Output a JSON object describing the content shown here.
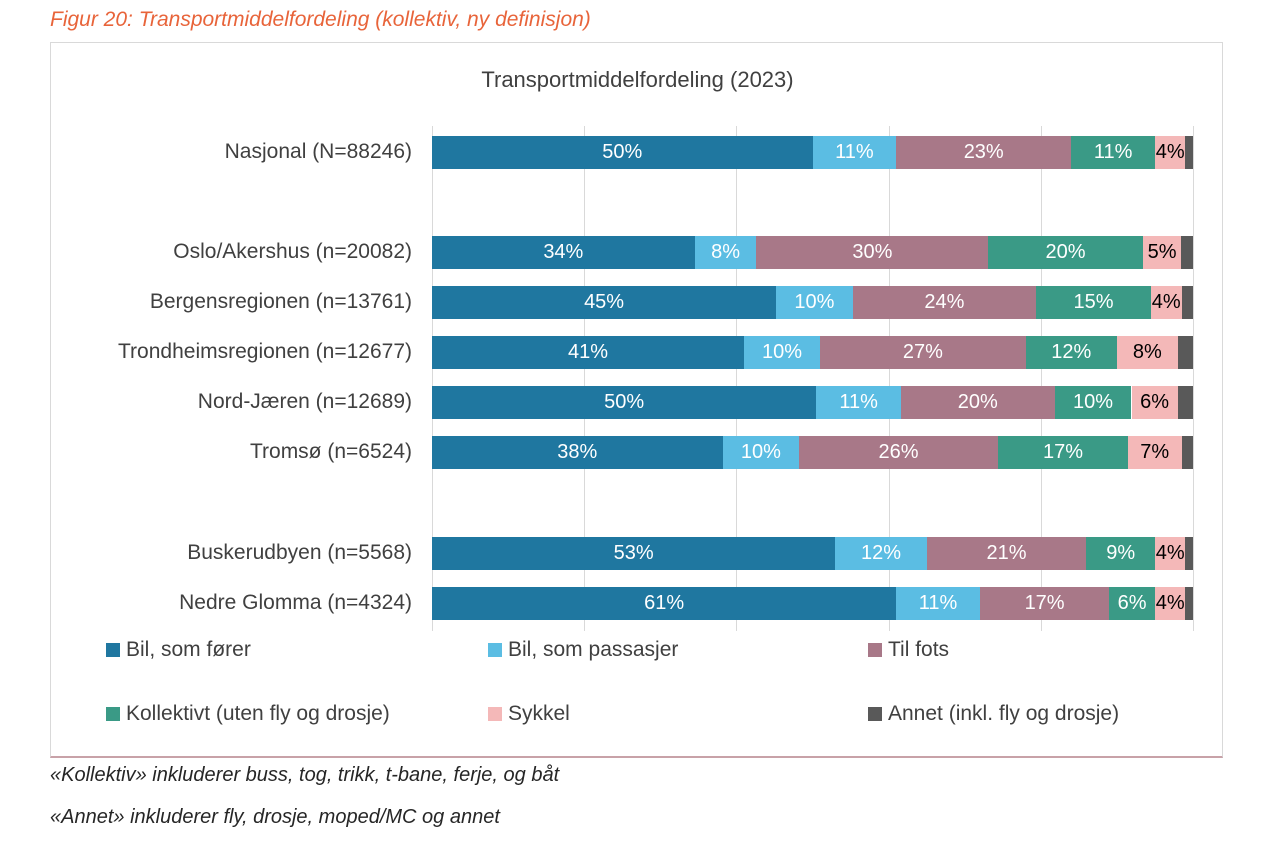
{
  "caption": "Figur 20: Transportmiddelfordeling (kollektiv, ny definisjon)",
  "notes": [
    "«Kollektiv» inkluderer buss, tog, trikk, t-bane, ferje, og båt",
    "«Annet» inkluderer fly, drosje, moped/MC og annet"
  ],
  "chart_data": {
    "type": "bar",
    "orientation": "horizontal",
    "stacked": "percent",
    "title": "Transportmiddelfordeling (2023)",
    "categories": [
      "Nasjonal (N=88246)",
      "Oslo/Akershus (n=20082)",
      "Bergensregionen (n=13761)",
      "Trondheimsregionen (n=12677)",
      "Nord-Jæren (n=12689)",
      "Tromsø (n=6524)",
      "Buskerudbyen (n=5568)",
      "Nedre Glomma (n=4324)"
    ],
    "series": [
      {
        "name": "Bil, som fører",
        "color": "#1f77a0",
        "label_color": "#ffffff",
        "values": [
          50,
          34,
          45,
          41,
          50,
          38,
          53,
          61
        ],
        "labels": [
          "50%",
          "34%",
          "45%",
          "41%",
          "50%",
          "38%",
          "53%",
          "61%"
        ]
      },
      {
        "name": "Bil, som passasjer",
        "color": "#5bbde3",
        "label_color": "#ffffff",
        "values": [
          11,
          8,
          10,
          10,
          11,
          10,
          12,
          11
        ],
        "labels": [
          "11%",
          "8%",
          "10%",
          "10%",
          "11%",
          "10%",
          "12%",
          "11%"
        ]
      },
      {
        "name": "Til fots",
        "color": "#a87888",
        "label_color": "#ffffff",
        "values": [
          23,
          30,
          24,
          27,
          20,
          26,
          21,
          17
        ],
        "labels": [
          "23%",
          "30%",
          "24%",
          "27%",
          "20%",
          "26%",
          "21%",
          "17%"
        ]
      },
      {
        "name": "Kollektivt (uten fly og drosje)",
        "color": "#3a9a86",
        "label_color": "#ffffff",
        "values": [
          11,
          20,
          15,
          12,
          10,
          17,
          9,
          6
        ],
        "labels": [
          "11%",
          "20%",
          "15%",
          "12%",
          "10%",
          "17%",
          "9%",
          "6%"
        ]
      },
      {
        "name": "Sykkel",
        "color": "#f4b8b8",
        "label_color": "#000000",
        "values": [
          4,
          5,
          4,
          8,
          6,
          7,
          4,
          4
        ],
        "labels": [
          "4%",
          "5%",
          "4%",
          "8%",
          "6%",
          "7%",
          "4%",
          "4%"
        ]
      },
      {
        "name": "Annet (inkl. fly og drosje)",
        "color": "#595959",
        "label_color": "#ffffff",
        "values": [
          1,
          1.5,
          1.5,
          2,
          2,
          1.5,
          1,
          1
        ],
        "labels": [
          "",
          "",
          "",
          "",
          "",
          "",
          "",
          ""
        ]
      }
    ],
    "xlim": [
      0,
      100
    ],
    "grid": true,
    "legend_position": "bottom"
  }
}
